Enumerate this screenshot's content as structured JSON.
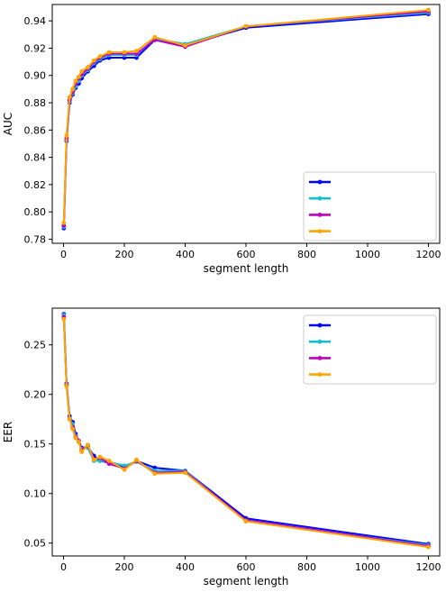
{
  "chart_data": [
    {
      "type": "line",
      "title": "",
      "xlabel": "segment length",
      "ylabel": "AUC",
      "xlim": [
        -37,
        1237
      ],
      "ylim": [
        0.777,
        0.952
      ],
      "xticks": [
        0,
        200,
        400,
        600,
        800,
        1000,
        1200
      ],
      "yticks": [
        0.78,
        0.8,
        0.82,
        0.84,
        0.86,
        0.88,
        0.9,
        0.92,
        0.94
      ],
      "legend_position": "lower-right",
      "x": [
        1,
        10,
        20,
        30,
        40,
        50,
        60,
        80,
        100,
        120,
        150,
        200,
        240,
        300,
        400,
        600,
        1200
      ],
      "series": [
        {
          "color": "#0000ff",
          "values": [
            0.788,
            0.852,
            0.88,
            0.886,
            0.891,
            0.894,
            0.898,
            0.903,
            0.907,
            0.911,
            0.913,
            0.913,
            0.913,
            0.926,
            0.922,
            0.935,
            0.945
          ]
        },
        {
          "color": "#17becf",
          "values": [
            0.789,
            0.853,
            0.881,
            0.887,
            0.892,
            0.896,
            0.9,
            0.904,
            0.909,
            0.912,
            0.915,
            0.915,
            0.915,
            0.927,
            0.923,
            0.936,
            0.946
          ]
        },
        {
          "color": "#bf00bf",
          "values": [
            0.79,
            0.854,
            0.882,
            0.888,
            0.894,
            0.898,
            0.901,
            0.905,
            0.91,
            0.913,
            0.916,
            0.916,
            0.916,
            0.926,
            0.921,
            0.936,
            0.947
          ]
        },
        {
          "color": "#ffa500",
          "values": [
            0.792,
            0.856,
            0.884,
            0.89,
            0.896,
            0.899,
            0.903,
            0.906,
            0.911,
            0.914,
            0.917,
            0.917,
            0.918,
            0.928,
            0.922,
            0.936,
            0.948
          ]
        }
      ]
    },
    {
      "type": "line",
      "title": "",
      "xlabel": "segment length",
      "ylabel": "EER",
      "xlim": [
        -37,
        1237
      ],
      "ylim": [
        0.037,
        0.287
      ],
      "xticks": [
        0,
        200,
        400,
        600,
        800,
        1000,
        1200
      ],
      "yticks": [
        0.05,
        0.1,
        0.15,
        0.2,
        0.25
      ],
      "legend_position": "top-right",
      "x": [
        1,
        10,
        20,
        30,
        40,
        50,
        60,
        80,
        100,
        120,
        150,
        200,
        240,
        300,
        400,
        600,
        1200
      ],
      "series": [
        {
          "color": "#0000ff",
          "values": [
            0.281,
            0.211,
            0.178,
            0.172,
            0.16,
            0.153,
            0.146,
            0.147,
            0.138,
            0.133,
            0.131,
            0.126,
            0.133,
            0.126,
            0.123,
            0.075,
            0.049
          ]
        },
        {
          "color": "#17becf",
          "values": [
            0.28,
            0.21,
            0.176,
            0.17,
            0.158,
            0.152,
            0.145,
            0.146,
            0.133,
            0.133,
            0.132,
            0.128,
            0.132,
            0.123,
            0.123,
            0.072,
            0.048
          ]
        },
        {
          "color": "#bf00bf",
          "values": [
            0.278,
            0.209,
            0.175,
            0.167,
            0.157,
            0.153,
            0.144,
            0.148,
            0.135,
            0.136,
            0.13,
            0.125,
            0.133,
            0.121,
            0.122,
            0.073,
            0.047
          ]
        },
        {
          "color": "#ffa500",
          "values": [
            0.276,
            0.208,
            0.175,
            0.165,
            0.156,
            0.152,
            0.142,
            0.149,
            0.134,
            0.137,
            0.133,
            0.124,
            0.134,
            0.12,
            0.121,
            0.072,
            0.046
          ]
        }
      ]
    }
  ]
}
